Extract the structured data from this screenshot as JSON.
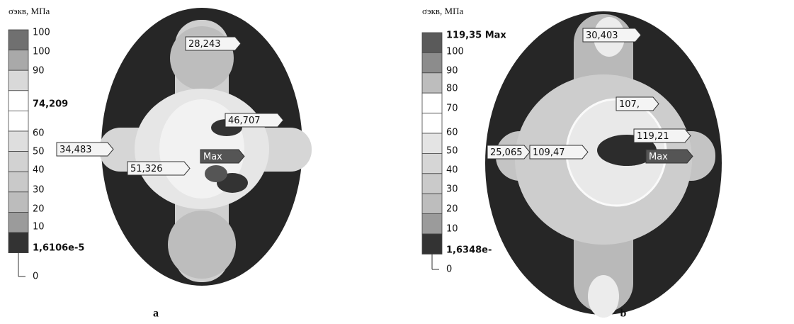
{
  "panels": [
    {
      "axis_title": "σэкв, МПа",
      "legend_labels": [
        "100",
        "100",
        "90",
        "74,209",
        "60",
        "50",
        "40",
        "30",
        "20",
        "10",
        "1,6106e-5",
        "0"
      ],
      "probes": [
        "28,243",
        "46,707",
        "34,483",
        "Max",
        "51,326"
      ],
      "caption": "a"
    },
    {
      "axis_title": "σэкв, МПа",
      "legend_labels": [
        "119,35 Max",
        "100",
        "90",
        "80",
        "70",
        "60",
        "50",
        "40",
        "30",
        "20",
        "10",
        "1,6348e-",
        "0"
      ],
      "probes": [
        "30,403",
        "107,",
        "119,21",
        "25,065",
        "109,47",
        "Max"
      ],
      "caption": "b"
    }
  ]
}
